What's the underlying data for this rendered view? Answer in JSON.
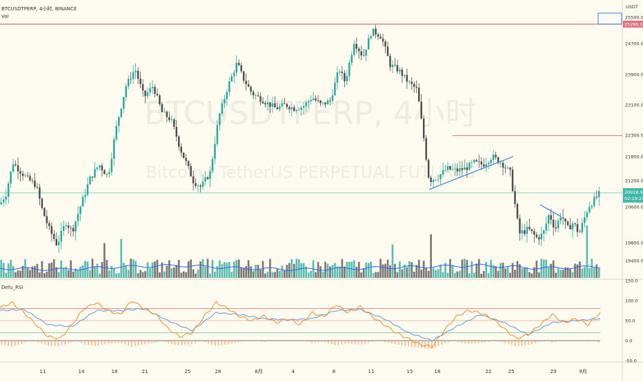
{
  "header": {
    "symbol_line": "BTCUSDTPERP, 4小时, BINANCE",
    "volume_label": "Vol",
    "indicator_label": "Defu_RSI",
    "currency": "USDT"
  },
  "watermark": {
    "main": "BTCUSDTPERP, 4小时",
    "sub": "Bitcoin / TetherUS PERPETUAL FUTURES"
  },
  "price_badges": {
    "alert_price": "25290.0",
    "last_price": "20918.9",
    "countdown": "02:19:25"
  },
  "colors": {
    "up": "#26a69a",
    "down": "#4a4a4a",
    "alert_line": "#e0707a",
    "trendline": "#3b7ddd",
    "rsi_fast": "#f28c28",
    "rsi_slow": "#5b9bd5",
    "last_price_line": "#3fb8a8",
    "volume_ma": "#2962ff"
  },
  "chart_data": [
    {
      "type": "candlestick",
      "title": "",
      "y_ticks": [
        19400,
        19800,
        20600,
        21200,
        21800,
        22300,
        23100,
        23900,
        24700,
        25500
      ],
      "y_tick_labels": [
        "19400.0",
        "19800.0",
        "20600.0",
        "21200.0",
        "21800.0",
        "22300.0",
        "23100.0",
        "23900.0",
        "24700.0",
        "25500.0"
      ],
      "x_tick_labels": [
        "11",
        "14",
        "18",
        "21",
        "25",
        "28",
        "8月",
        "4",
        "8",
        "11",
        "15",
        "18",
        "22",
        "25",
        "29",
        "9月"
      ],
      "alert_levels": [
        25290,
        22290
      ],
      "last_price": 20918.9,
      "trendlines": [
        {
          "from": [
            0.715,
            21000
          ],
          "to": [
            0.855,
            21800
          ]
        },
        {
          "from": [
            0.9,
            20650
          ],
          "to": [
            0.935,
            20380
          ]
        }
      ],
      "anchors": [
        [
          0.0,
          20660
        ],
        [
          0.01,
          20900
        ],
        [
          0.022,
          21650
        ],
        [
          0.03,
          21500
        ],
        [
          0.045,
          21250
        ],
        [
          0.06,
          21100
        ],
        [
          0.07,
          20550
        ],
        [
          0.082,
          20100
        ],
        [
          0.095,
          19760
        ],
        [
          0.11,
          20260
        ],
        [
          0.12,
          20050
        ],
        [
          0.135,
          20650
        ],
        [
          0.15,
          21250
        ],
        [
          0.165,
          21600
        ],
        [
          0.18,
          21300
        ],
        [
          0.195,
          22600
        ],
        [
          0.21,
          23600
        ],
        [
          0.225,
          24050
        ],
        [
          0.24,
          23300
        ],
        [
          0.255,
          23600
        ],
        [
          0.27,
          22900
        ],
        [
          0.285,
          22700
        ],
        [
          0.3,
          22000
        ],
        [
          0.31,
          21650
        ],
        [
          0.322,
          21200
        ],
        [
          0.335,
          21050
        ],
        [
          0.35,
          21400
        ],
        [
          0.365,
          22800
        ],
        [
          0.38,
          23600
        ],
        [
          0.395,
          24200
        ],
        [
          0.405,
          23800
        ],
        [
          0.42,
          23400
        ],
        [
          0.44,
          23200
        ],
        [
          0.46,
          23000
        ],
        [
          0.475,
          23100
        ],
        [
          0.49,
          23000
        ],
        [
          0.505,
          23050
        ],
        [
          0.52,
          23300
        ],
        [
          0.535,
          23100
        ],
        [
          0.55,
          23200
        ],
        [
          0.565,
          24050
        ],
        [
          0.575,
          23700
        ],
        [
          0.59,
          24750
        ],
        [
          0.605,
          24350
        ],
        [
          0.62,
          25100
        ],
        [
          0.635,
          24900
        ],
        [
          0.65,
          24150
        ],
        [
          0.665,
          24000
        ],
        [
          0.68,
          23700
        ],
        [
          0.695,
          23500
        ],
        [
          0.705,
          22350
        ],
        [
          0.715,
          21200
        ],
        [
          0.73,
          21300
        ],
        [
          0.745,
          21500
        ],
        [
          0.76,
          21450
        ],
        [
          0.775,
          21500
        ],
        [
          0.79,
          21650
        ],
        [
          0.805,
          21600
        ],
        [
          0.82,
          21800
        ],
        [
          0.835,
          21650
        ],
        [
          0.85,
          21400
        ],
        [
          0.865,
          20000
        ],
        [
          0.88,
          20100
        ],
        [
          0.895,
          19900
        ],
        [
          0.905,
          20000
        ],
        [
          0.915,
          20450
        ],
        [
          0.925,
          20100
        ],
        [
          0.935,
          20450
        ],
        [
          0.945,
          20100
        ],
        [
          0.955,
          20250
        ],
        [
          0.965,
          20000
        ],
        [
          0.98,
          20600
        ],
        [
          1.0,
          20919
        ]
      ]
    },
    {
      "type": "bar",
      "title": "",
      "notes": "volume histogram with moving average",
      "ma_anchors": [
        [
          0,
          0.35
        ],
        [
          0.1,
          0.3
        ],
        [
          0.2,
          0.4
        ],
        [
          0.3,
          0.45
        ],
        [
          0.4,
          0.35
        ],
        [
          0.5,
          0.3
        ],
        [
          0.6,
          0.35
        ],
        [
          0.7,
          0.4
        ],
        [
          0.8,
          0.45
        ],
        [
          0.9,
          0.35
        ],
        [
          1,
          0.4
        ]
      ]
    },
    {
      "type": "line",
      "title": "",
      "y_ticks": [
        -50,
        0,
        50,
        100,
        150
      ],
      "y_tick_labels": [
        "-50.0",
        "0.0",
        "50.0",
        "100.0",
        "150.0"
      ],
      "reference_levels": [
        80,
        50,
        20
      ],
      "fast_anchors": [
        [
          0.0,
          82
        ],
        [
          0.02,
          95
        ],
        [
          0.04,
          70
        ],
        [
          0.06,
          40
        ],
        [
          0.08,
          10
        ],
        [
          0.1,
          5
        ],
        [
          0.12,
          40
        ],
        [
          0.14,
          80
        ],
        [
          0.16,
          95
        ],
        [
          0.18,
          75
        ],
        [
          0.2,
          65
        ],
        [
          0.22,
          100
        ],
        [
          0.24,
          80
        ],
        [
          0.26,
          65
        ],
        [
          0.28,
          30
        ],
        [
          0.3,
          10
        ],
        [
          0.32,
          20
        ],
        [
          0.34,
          60
        ],
        [
          0.36,
          95
        ],
        [
          0.38,
          80
        ],
        [
          0.4,
          60
        ],
        [
          0.42,
          50
        ],
        [
          0.44,
          62
        ],
        [
          0.46,
          45
        ],
        [
          0.48,
          55
        ],
        [
          0.5,
          40
        ],
        [
          0.52,
          70
        ],
        [
          0.54,
          60
        ],
        [
          0.56,
          90
        ],
        [
          0.58,
          70
        ],
        [
          0.6,
          85
        ],
        [
          0.62,
          60
        ],
        [
          0.64,
          40
        ],
        [
          0.66,
          20
        ],
        [
          0.68,
          5
        ],
        [
          0.7,
          -10
        ],
        [
          0.72,
          -15
        ],
        [
          0.74,
          25
        ],
        [
          0.76,
          60
        ],
        [
          0.78,
          75
        ],
        [
          0.8,
          70
        ],
        [
          0.82,
          55
        ],
        [
          0.84,
          30
        ],
        [
          0.86,
          5
        ],
        [
          0.88,
          15
        ],
        [
          0.9,
          40
        ],
        [
          0.92,
          65
        ],
        [
          0.94,
          45
        ],
        [
          0.96,
          55
        ],
        [
          0.98,
          40
        ],
        [
          1.0,
          70
        ]
      ],
      "slow_anchors": [
        [
          0.0,
          75
        ],
        [
          0.04,
          78
        ],
        [
          0.08,
          40
        ],
        [
          0.12,
          35
        ],
        [
          0.16,
          75
        ],
        [
          0.2,
          75
        ],
        [
          0.24,
          80
        ],
        [
          0.28,
          50
        ],
        [
          0.32,
          25
        ],
        [
          0.36,
          70
        ],
        [
          0.4,
          65
        ],
        [
          0.44,
          55
        ],
        [
          0.48,
          52
        ],
        [
          0.52,
          55
        ],
        [
          0.56,
          75
        ],
        [
          0.6,
          78
        ],
        [
          0.64,
          55
        ],
        [
          0.68,
          20
        ],
        [
          0.72,
          0
        ],
        [
          0.76,
          35
        ],
        [
          0.8,
          65
        ],
        [
          0.84,
          45
        ],
        [
          0.88,
          15
        ],
        [
          0.92,
          45
        ],
        [
          0.96,
          50
        ],
        [
          1.0,
          55
        ]
      ]
    }
  ]
}
